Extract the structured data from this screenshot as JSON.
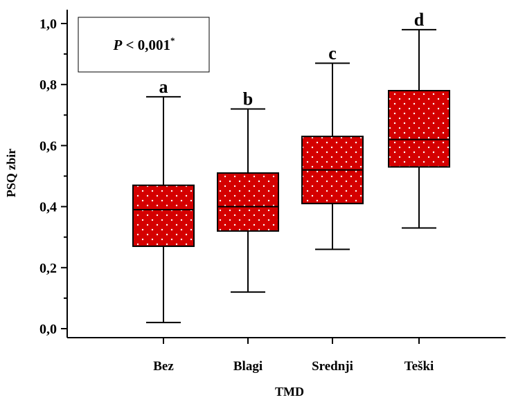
{
  "chart_data": {
    "type": "boxplot",
    "xlabel": "TMD",
    "ylabel": "PSQ zbir",
    "ylim": [
      0,
      1.0
    ],
    "yticks": [
      "0,0",
      "0,2",
      "0,4",
      "0,6",
      "0,8",
      "1,0"
    ],
    "categories": [
      "Bez",
      "Blagi",
      "Srednji",
      "Teški"
    ],
    "boxes": [
      {
        "category": "Bez",
        "min": 0.02,
        "q1": 0.27,
        "median": 0.39,
        "q3": 0.47,
        "max": 0.76,
        "letter": "a"
      },
      {
        "category": "Blagi",
        "min": 0.12,
        "q1": 0.32,
        "median": 0.4,
        "q3": 0.51,
        "max": 0.72,
        "letter": "b"
      },
      {
        "category": "Srednji",
        "min": 0.26,
        "q1": 0.41,
        "median": 0.52,
        "q3": 0.63,
        "max": 0.87,
        "letter": "c"
      },
      {
        "category": "Teški",
        "min": 0.33,
        "q1": 0.53,
        "median": 0.62,
        "q3": 0.78,
        "max": 0.98,
        "letter": "d"
      }
    ],
    "annotation": {
      "p_symbol": "P",
      "p_text": " < 0,001",
      "p_mark": "*"
    },
    "box_color": "#d40000",
    "dot_color": "#ffffff",
    "grid": false
  }
}
